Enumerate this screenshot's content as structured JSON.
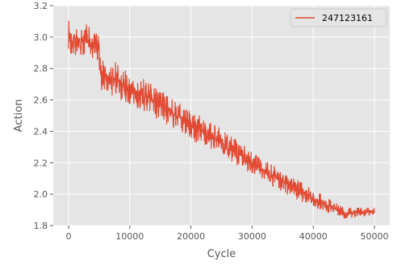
{
  "chart_data": {
    "type": "line",
    "title": "",
    "xlabel": "Cycle",
    "ylabel": "Action",
    "xlim": [
      -2500,
      52500
    ],
    "ylim": [
      1.8,
      3.2
    ],
    "xticks": [
      0,
      10000,
      20000,
      30000,
      40000,
      50000
    ],
    "xtick_labels": [
      "0",
      "10000",
      "20000",
      "30000",
      "40000",
      "50000"
    ],
    "yticks": [
      1.8,
      2.0,
      2.2,
      2.4,
      2.6,
      2.8,
      3.0,
      3.2
    ],
    "ytick_labels": [
      "1.8",
      "2.0",
      "2.2",
      "2.4",
      "2.6",
      "2.8",
      "3.0",
      "3.2"
    ],
    "grid": true,
    "legend_position": "top-right",
    "series": [
      {
        "name": "247123161",
        "color": "#e24a33",
        "trend": {
          "x": [
            0,
            2500,
            5000,
            5100,
            10000,
            15000,
            20000,
            25000,
            30000,
            35000,
            40000,
            45000,
            50000
          ],
          "y": [
            3.0,
            2.98,
            2.95,
            2.78,
            2.68,
            2.57,
            2.44,
            2.33,
            2.2,
            2.08,
            1.97,
            1.88,
            1.89
          ]
        },
        "band": {
          "x": [
            0,
            5000,
            5100,
            20000,
            40000,
            45000,
            50000
          ],
          "half_width": [
            0.09,
            0.09,
            0.1,
            0.08,
            0.05,
            0.03,
            0.02
          ]
        }
      }
    ]
  }
}
